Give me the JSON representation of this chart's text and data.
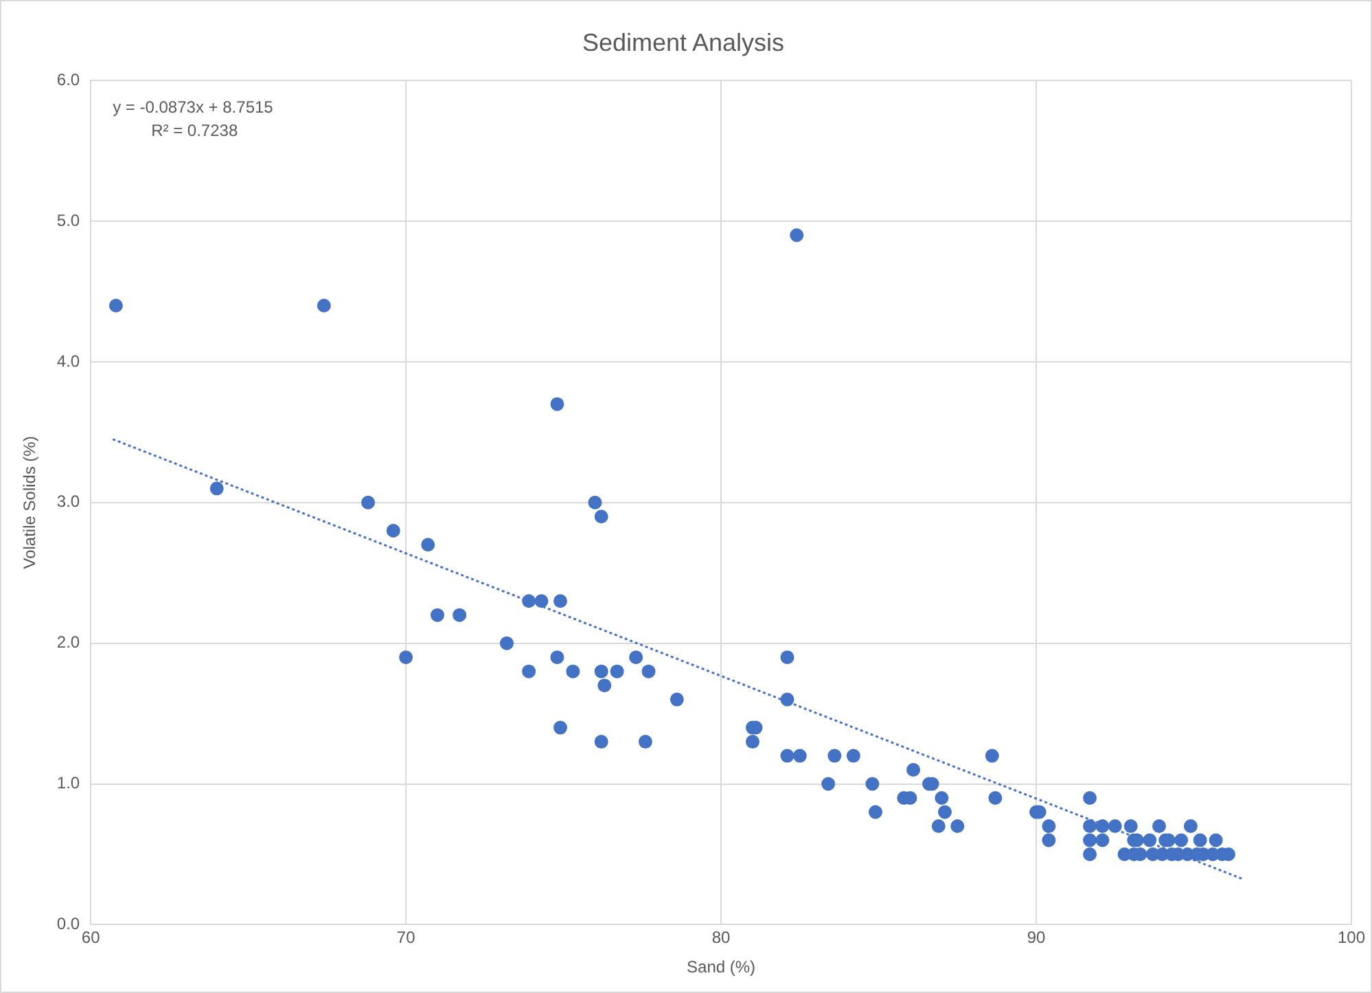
{
  "chart_data": {
    "type": "scatter",
    "title": "Sediment Analysis",
    "xlabel": "Sand (%)",
    "ylabel": "Volatile Solids (%)",
    "xlim": [
      60,
      100
    ],
    "xticks": [
      60,
      70,
      80,
      90,
      100
    ],
    "ylim": [
      0,
      6
    ],
    "yticks": [
      {
        "value": 0,
        "label": "0.0"
      },
      {
        "value": 1,
        "label": "1.0"
      },
      {
        "value": 2,
        "label": "2.0"
      },
      {
        "value": 3,
        "label": "3.0"
      },
      {
        "value": 4,
        "label": "4.0"
      },
      {
        "value": 5,
        "label": "5.0"
      },
      {
        "value": 6,
        "label": "6.0"
      }
    ],
    "grid": true,
    "legend": false,
    "annotations": [
      "y = -0.0873x + 8.7515",
      "R² = 0.7238"
    ],
    "series": [
      {
        "color": "#4472c4",
        "marker": "circle",
        "x": [
          60.8,
          64.0,
          67.4,
          68.8,
          69.6,
          70.0,
          70.7,
          71.0,
          71.7,
          73.2,
          73.9,
          73.9,
          74.3,
          74.8,
          74.8,
          74.9,
          74.9,
          75.3,
          76.0,
          76.2,
          76.2,
          76.3,
          76.2,
          76.7,
          77.3,
          77.7,
          77.6,
          78.6,
          81.0,
          81.1,
          81.0,
          82.1,
          82.4,
          82.1,
          82.1,
          82.5,
          83.4,
          83.6,
          84.2,
          84.8,
          84.9,
          85.8,
          86.0,
          86.1,
          86.6,
          86.7,
          87.0,
          86.9,
          87.1,
          87.5,
          88.6,
          88.7,
          90.0,
          90.1,
          90.4,
          90.4,
          91.7,
          91.7,
          92.1,
          92.5,
          93.0,
          93.9,
          94.9,
          91.7,
          92.1,
          93.1,
          93.2,
          93.6,
          94.1,
          94.2,
          94.6,
          95.2,
          95.7,
          91.7,
          92.8,
          93.1,
          93.3,
          93.7,
          94.0,
          94.3,
          94.5,
          94.8,
          95.1,
          95.3,
          95.6,
          95.9,
          96.1
        ],
        "values": [
          4.4,
          3.1,
          4.4,
          3.0,
          2.8,
          1.9,
          2.7,
          2.2,
          2.2,
          2.0,
          2.3,
          1.8,
          2.3,
          3.7,
          1.9,
          2.3,
          1.4,
          1.8,
          3.0,
          2.9,
          1.8,
          1.7,
          1.3,
          1.8,
          1.9,
          1.8,
          1.3,
          1.6,
          1.4,
          1.4,
          1.3,
          1.9,
          4.9,
          1.6,
          1.2,
          1.2,
          1.0,
          1.2,
          1.2,
          1.0,
          0.8,
          0.9,
          0.9,
          1.1,
          1.0,
          1.0,
          0.9,
          0.7,
          0.8,
          0.7,
          1.2,
          0.9,
          0.8,
          0.8,
          0.7,
          0.6,
          0.9,
          0.7,
          0.7,
          0.7,
          0.7,
          0.7,
          0.7,
          0.6,
          0.6,
          0.6,
          0.6,
          0.6,
          0.6,
          0.6,
          0.6,
          0.6,
          0.6,
          0.5,
          0.5,
          0.5,
          0.5,
          0.5,
          0.5,
          0.5,
          0.5,
          0.5,
          0.5,
          0.5,
          0.5,
          0.5,
          0.5
        ]
      },
      {
        "type": "line",
        "color": "#4472c4",
        "marker": "none",
        "line_style": "dotted",
        "x": [
          60.7,
          96.6
        ],
        "values": [
          3.45,
          0.32
        ]
      }
    ]
  }
}
